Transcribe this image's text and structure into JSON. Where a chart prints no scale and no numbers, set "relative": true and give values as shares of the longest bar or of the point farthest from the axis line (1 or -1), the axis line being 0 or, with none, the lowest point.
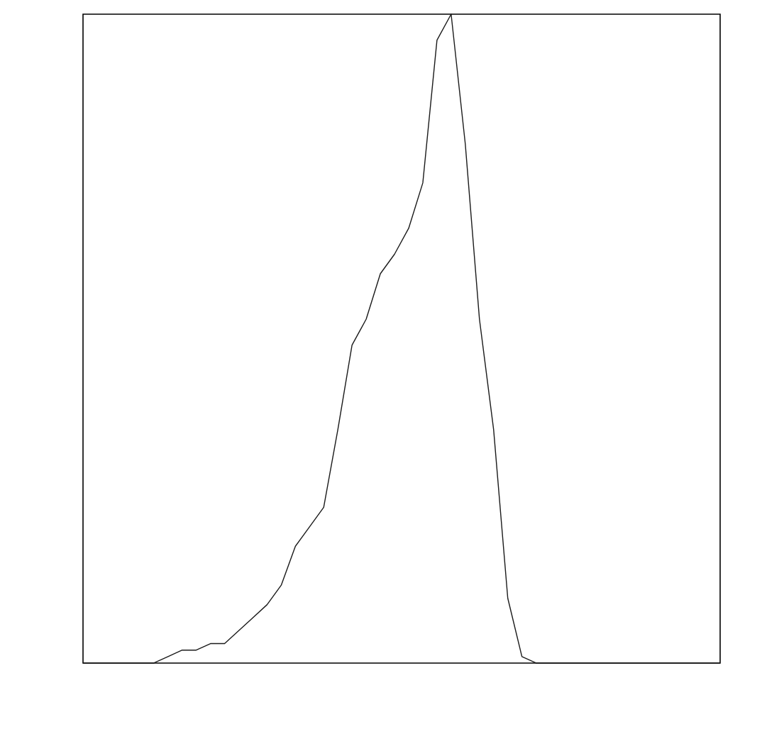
{
  "chart_data": {
    "type": "line",
    "relative": true,
    "categories": [
      null,
      null,
      null,
      null,
      null,
      null,
      null,
      null,
      null,
      null,
      null,
      null,
      null,
      null,
      null,
      null,
      null,
      null,
      null,
      null,
      null,
      null,
      null,
      null,
      null,
      null,
      null,
      null,
      null,
      null,
      null,
      null,
      null,
      null,
      null,
      null,
      null,
      null,
      null,
      null,
      null,
      null,
      null,
      null,
      null,
      null
    ],
    "series": [
      {
        "color": "#1a1a1a",
        "values": [
          0,
          0,
          0,
          0,
          0,
          0,
          0.01,
          0.02,
          0.02,
          0.03,
          0.03,
          0.05,
          0.07,
          0.09,
          0.12,
          0.18,
          0.21,
          0.24,
          0.36,
          0.49,
          0.53,
          0.6,
          0.63,
          0.67,
          0.74,
          0.96,
          1,
          0.8,
          0.53,
          0.36,
          0.1,
          0.01,
          0,
          0,
          0,
          0,
          0,
          0,
          0,
          0,
          0,
          0,
          0,
          0,
          0,
          0
        ]
      }
    ]
  }
}
